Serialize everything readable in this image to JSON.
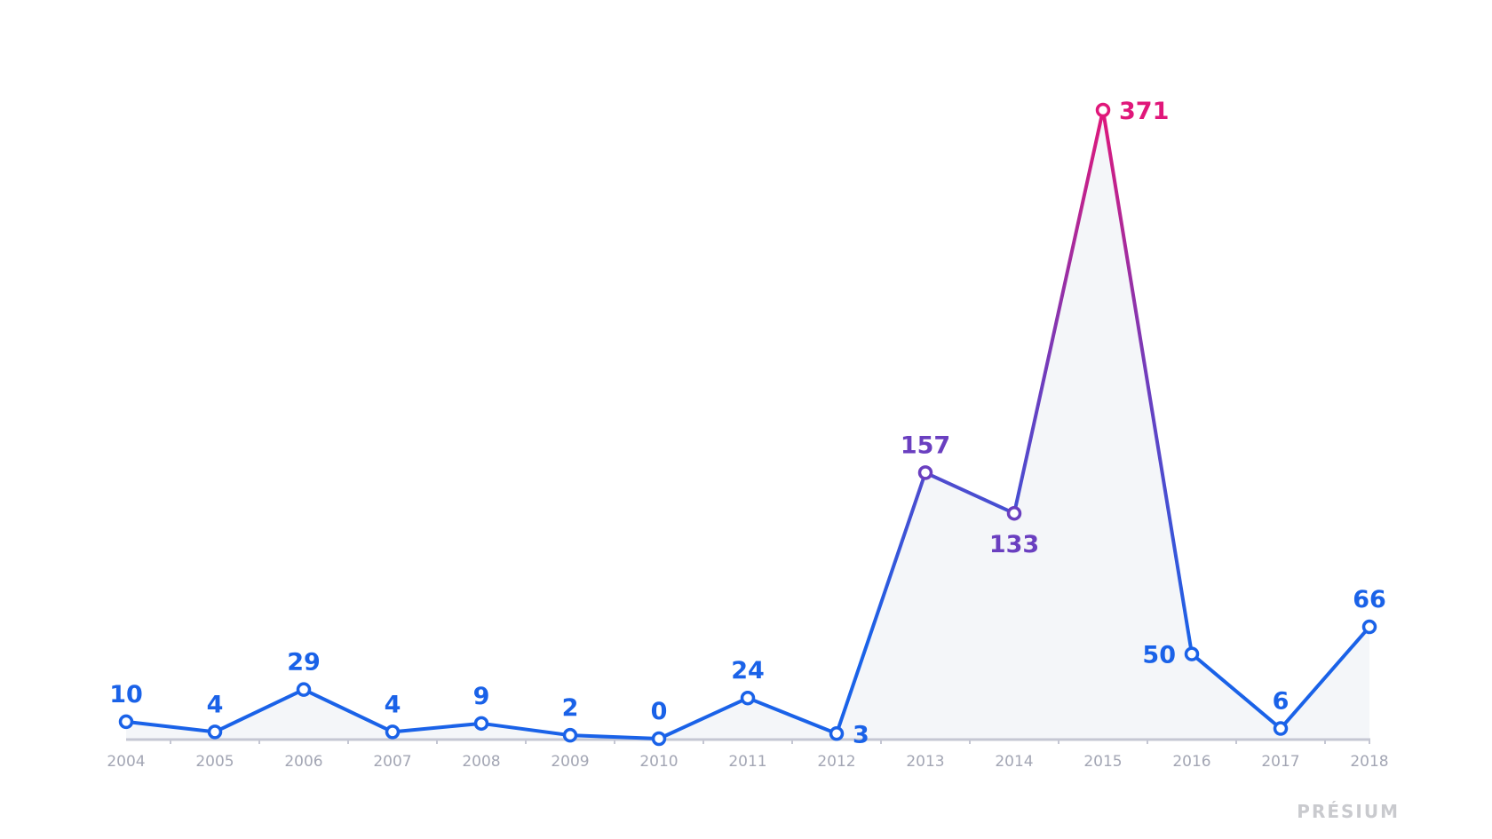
{
  "chart_data": {
    "type": "area",
    "title": "",
    "xlabel": "",
    "ylabel": "",
    "categories": [
      "2004",
      "2005",
      "2006",
      "2007",
      "2008",
      "2009",
      "2010",
      "2011",
      "2012",
      "2013",
      "2014",
      "2015",
      "2016",
      "2017",
      "2018"
    ],
    "values": [
      10,
      4,
      29,
      4,
      9,
      2,
      0,
      24,
      3,
      157,
      133,
      371,
      50,
      6,
      66
    ],
    "ylim": [
      0,
      371
    ],
    "grid": false,
    "legend": "none",
    "colors": {
      "low": "#1a62e8",
      "mid": "#6a3fc0",
      "high": "#e0177a",
      "fill": "#f4f6f9",
      "axis": "#c5c7d3",
      "tick_label": "#a3a6b4"
    }
  },
  "watermark": "PRÉSIUM"
}
